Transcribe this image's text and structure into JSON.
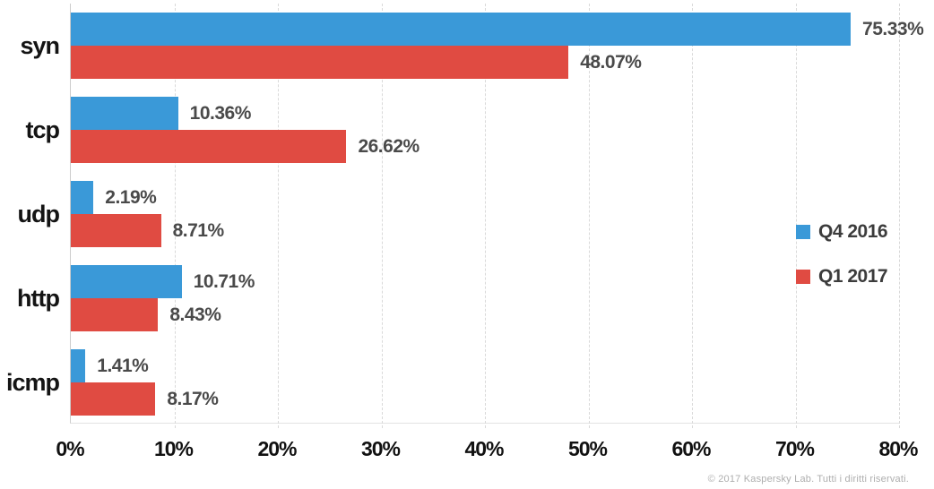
{
  "chart_data": {
    "type": "bar",
    "orientation": "horizontal",
    "title": "",
    "categories": [
      "syn",
      "tcp",
      "udp",
      "http",
      "icmp"
    ],
    "series": [
      {
        "name": "Q4 2016",
        "color": "#3a99d8",
        "values": [
          75.33,
          10.36,
          2.19,
          10.71,
          1.41
        ],
        "labels": [
          "75.33%",
          "10.36%",
          "2.19%",
          "10.71%",
          "1.41%"
        ]
      },
      {
        "name": "Q1 2017",
        "color": "#e04b42",
        "values": [
          48.07,
          26.62,
          8.71,
          8.43,
          8.17
        ],
        "labels": [
          "48.07%",
          "26.62%",
          "8.71%",
          "8.43%",
          "8.17%"
        ]
      }
    ],
    "xlim": [
      0,
      80
    ],
    "x_ticks": [
      "0%",
      "10%",
      "20%",
      "30%",
      "40%",
      "50%",
      "60%",
      "70%",
      "80%"
    ],
    "grid": "vertical-dashed",
    "legend_position": "right"
  },
  "footer": {
    "copyright": "© 2017 Kaspersky Lab. Tutti i diritti riservati."
  },
  "colors": {
    "series_q4_2016": "#3a99d8",
    "series_q1_2017": "#e04b42",
    "grid": "#d9d9d9",
    "value_label": "#4a4a4a",
    "category_label": "#141414",
    "axis_tick_label": "#111111",
    "copyright": "#aeaeae"
  }
}
